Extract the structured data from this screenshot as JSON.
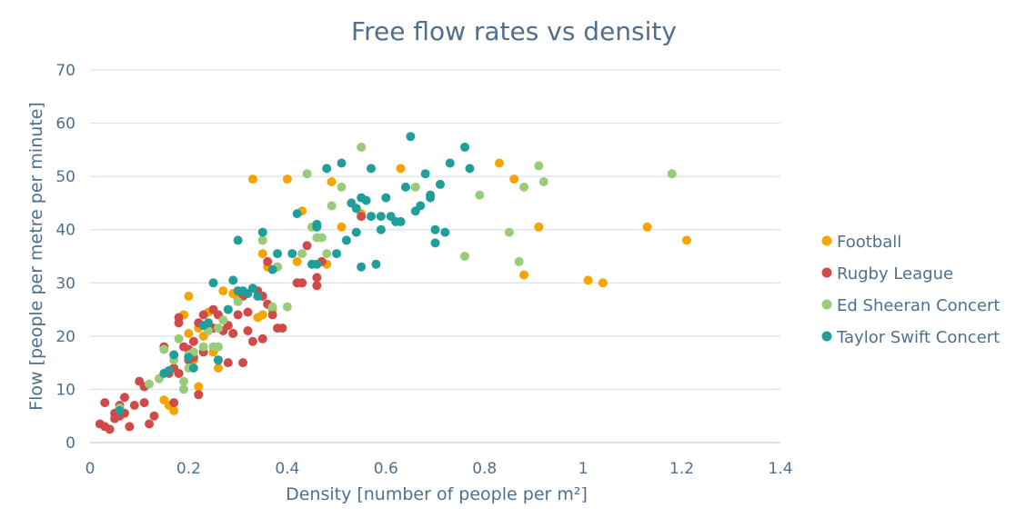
{
  "chart_data": {
    "type": "scatter",
    "title": "Free flow rates vs density",
    "xlabel": "Density [number of people per m²]",
    "ylabel": "Flow [people per metre per minute]",
    "xlim": [
      0,
      1.4
    ],
    "ylim": [
      0,
      70
    ],
    "xticks": [
      "0",
      "0.2",
      "0.4",
      "0.6",
      "0.8",
      "1",
      "1.2",
      "1.4"
    ],
    "yticks": [
      "0",
      "10",
      "20",
      "30",
      "40",
      "50",
      "60",
      "70"
    ],
    "grid": "horizontal",
    "legend_position": "right",
    "series": [
      {
        "name": "Football",
        "color": "#f5a500",
        "points": [
          [
            0.15,
            8.0
          ],
          [
            0.16,
            7.0
          ],
          [
            0.17,
            6.0
          ],
          [
            0.18,
            13.0
          ],
          [
            0.19,
            24.0
          ],
          [
            0.2,
            27.5
          ],
          [
            0.2,
            20.5
          ],
          [
            0.21,
            15.5
          ],
          [
            0.22,
            21.5
          ],
          [
            0.22,
            10.5
          ],
          [
            0.23,
            20.0
          ],
          [
            0.24,
            24.5
          ],
          [
            0.25,
            17.0
          ],
          [
            0.26,
            14.0
          ],
          [
            0.27,
            28.5
          ],
          [
            0.28,
            22.0
          ],
          [
            0.29,
            28.0
          ],
          [
            0.3,
            27.0
          ],
          [
            0.33,
            49.5
          ],
          [
            0.34,
            23.5
          ],
          [
            0.35,
            24.0
          ],
          [
            0.35,
            35.5
          ],
          [
            0.36,
            33.0
          ],
          [
            0.37,
            25.0
          ],
          [
            0.4,
            49.5
          ],
          [
            0.42,
            34.0
          ],
          [
            0.42,
            30.0
          ],
          [
            0.43,
            43.5
          ],
          [
            0.47,
            34.0
          ],
          [
            0.48,
            33.5
          ],
          [
            0.49,
            49.0
          ],
          [
            0.51,
            40.5
          ],
          [
            0.55,
            43.0
          ],
          [
            0.63,
            51.5
          ],
          [
            0.83,
            52.5
          ],
          [
            0.86,
            49.5
          ],
          [
            0.88,
            31.5
          ],
          [
            0.91,
            40.5
          ],
          [
            1.01,
            30.5
          ],
          [
            1.04,
            30.0
          ],
          [
            1.13,
            40.5
          ],
          [
            1.21,
            38.0
          ]
        ]
      },
      {
        "name": "Rugby League",
        "color": "#d04a4a",
        "points": [
          [
            0.02,
            3.5
          ],
          [
            0.03,
            3.0
          ],
          [
            0.03,
            7.5
          ],
          [
            0.04,
            2.5
          ],
          [
            0.05,
            5.5
          ],
          [
            0.05,
            4.5
          ],
          [
            0.06,
            7.0
          ],
          [
            0.06,
            5.0
          ],
          [
            0.07,
            8.5
          ],
          [
            0.07,
            5.5
          ],
          [
            0.08,
            3.0
          ],
          [
            0.09,
            7.0
          ],
          [
            0.1,
            11.5
          ],
          [
            0.11,
            10.5
          ],
          [
            0.11,
            7.5
          ],
          [
            0.12,
            3.5
          ],
          [
            0.13,
            5.0
          ],
          [
            0.15,
            18.0
          ],
          [
            0.16,
            13.0
          ],
          [
            0.17,
            14.0
          ],
          [
            0.17,
            7.5
          ],
          [
            0.18,
            23.5
          ],
          [
            0.18,
            22.5
          ],
          [
            0.18,
            13.0
          ],
          [
            0.19,
            18.0
          ],
          [
            0.2,
            17.5
          ],
          [
            0.2,
            15.5
          ],
          [
            0.21,
            19.0
          ],
          [
            0.21,
            16.0
          ],
          [
            0.22,
            22.5
          ],
          [
            0.22,
            9.0
          ],
          [
            0.23,
            24.0
          ],
          [
            0.23,
            17.0
          ],
          [
            0.24,
            22.0
          ],
          [
            0.25,
            25.0
          ],
          [
            0.25,
            21.5
          ],
          [
            0.26,
            24.0
          ],
          [
            0.26,
            15.5
          ],
          [
            0.27,
            21.0
          ],
          [
            0.28,
            22.0
          ],
          [
            0.28,
            15.0
          ],
          [
            0.29,
            20.5
          ],
          [
            0.3,
            24.0
          ],
          [
            0.31,
            27.5
          ],
          [
            0.31,
            15.0
          ],
          [
            0.32,
            24.5
          ],
          [
            0.32,
            21.0
          ],
          [
            0.33,
            19.0
          ],
          [
            0.34,
            28.5
          ],
          [
            0.35,
            27.5
          ],
          [
            0.35,
            19.5
          ],
          [
            0.36,
            34.0
          ],
          [
            0.36,
            26.0
          ],
          [
            0.37,
            24.0
          ],
          [
            0.38,
            33.0
          ],
          [
            0.38,
            21.5
          ],
          [
            0.39,
            21.5
          ],
          [
            0.42,
            30.0
          ],
          [
            0.43,
            30.0
          ],
          [
            0.44,
            37.0
          ],
          [
            0.46,
            31.0
          ],
          [
            0.46,
            29.5
          ],
          [
            0.47,
            34.0
          ],
          [
            0.55,
            42.5
          ]
        ]
      },
      {
        "name": "Ed Sheeran Concert",
        "color": "#9acb7b",
        "points": [
          [
            0.06,
            6.5
          ],
          [
            0.12,
            11.0
          ],
          [
            0.14,
            12.0
          ],
          [
            0.15,
            17.5
          ],
          [
            0.17,
            15.5
          ],
          [
            0.18,
            19.5
          ],
          [
            0.19,
            11.5
          ],
          [
            0.19,
            10.0
          ],
          [
            0.2,
            16.5
          ],
          [
            0.2,
            14.0
          ],
          [
            0.21,
            17.0
          ],
          [
            0.23,
            18.0
          ],
          [
            0.24,
            21.0
          ],
          [
            0.25,
            18.0
          ],
          [
            0.26,
            21.5
          ],
          [
            0.26,
            18.0
          ],
          [
            0.27,
            23.0
          ],
          [
            0.28,
            25.0
          ],
          [
            0.3,
            26.5
          ],
          [
            0.35,
            38.0
          ],
          [
            0.37,
            25.5
          ],
          [
            0.38,
            33.0
          ],
          [
            0.4,
            25.5
          ],
          [
            0.43,
            35.5
          ],
          [
            0.44,
            50.5
          ],
          [
            0.45,
            40.5
          ],
          [
            0.46,
            38.5
          ],
          [
            0.47,
            38.5
          ],
          [
            0.48,
            35.5
          ],
          [
            0.49,
            44.5
          ],
          [
            0.51,
            48.0
          ],
          [
            0.55,
            55.5
          ],
          [
            0.66,
            48.0
          ],
          [
            0.76,
            35.0
          ],
          [
            0.79,
            46.5
          ],
          [
            0.85,
            39.5
          ],
          [
            0.87,
            34.0
          ],
          [
            0.88,
            48.0
          ],
          [
            0.91,
            52.0
          ],
          [
            0.92,
            49.0
          ],
          [
            1.18,
            50.5
          ]
        ]
      },
      {
        "name": "Taylor Swift Concert",
        "color": "#1f9e9a",
        "points": [
          [
            0.06,
            6.0
          ],
          [
            0.15,
            13.0
          ],
          [
            0.16,
            13.5
          ],
          [
            0.17,
            16.5
          ],
          [
            0.2,
            16.0
          ],
          [
            0.21,
            14.0
          ],
          [
            0.23,
            22.0
          ],
          [
            0.24,
            22.5
          ],
          [
            0.25,
            30.0
          ],
          [
            0.26,
            15.5
          ],
          [
            0.28,
            25.0
          ],
          [
            0.29,
            30.5
          ],
          [
            0.3,
            28.5
          ],
          [
            0.3,
            38.0
          ],
          [
            0.31,
            28.5
          ],
          [
            0.32,
            28.0
          ],
          [
            0.33,
            29.0
          ],
          [
            0.34,
            27.5
          ],
          [
            0.35,
            39.5
          ],
          [
            0.37,
            32.5
          ],
          [
            0.38,
            35.5
          ],
          [
            0.41,
            35.5
          ],
          [
            0.42,
            43.0
          ],
          [
            0.45,
            33.5
          ],
          [
            0.46,
            40.5
          ],
          [
            0.46,
            41.0
          ],
          [
            0.46,
            33.5
          ],
          [
            0.48,
            51.5
          ],
          [
            0.5,
            35.5
          ],
          [
            0.51,
            52.5
          ],
          [
            0.52,
            38.0
          ],
          [
            0.53,
            45.0
          ],
          [
            0.54,
            39.5
          ],
          [
            0.54,
            44.0
          ],
          [
            0.55,
            46.0
          ],
          [
            0.55,
            33.0
          ],
          [
            0.56,
            45.5
          ],
          [
            0.57,
            42.5
          ],
          [
            0.57,
            51.5
          ],
          [
            0.58,
            33.5
          ],
          [
            0.59,
            42.5
          ],
          [
            0.59,
            40.0
          ],
          [
            0.6,
            46.0
          ],
          [
            0.61,
            42.5
          ],
          [
            0.62,
            41.5
          ],
          [
            0.63,
            41.5
          ],
          [
            0.64,
            48.0
          ],
          [
            0.65,
            57.5
          ],
          [
            0.66,
            43.5
          ],
          [
            0.67,
            44.5
          ],
          [
            0.68,
            50.5
          ],
          [
            0.69,
            46.5
          ],
          [
            0.69,
            46.0
          ],
          [
            0.7,
            40.0
          ],
          [
            0.7,
            37.5
          ],
          [
            0.71,
            48.5
          ],
          [
            0.72,
            39.5
          ],
          [
            0.73,
            52.5
          ],
          [
            0.76,
            55.5
          ],
          [
            0.77,
            51.5
          ]
        ]
      }
    ]
  }
}
